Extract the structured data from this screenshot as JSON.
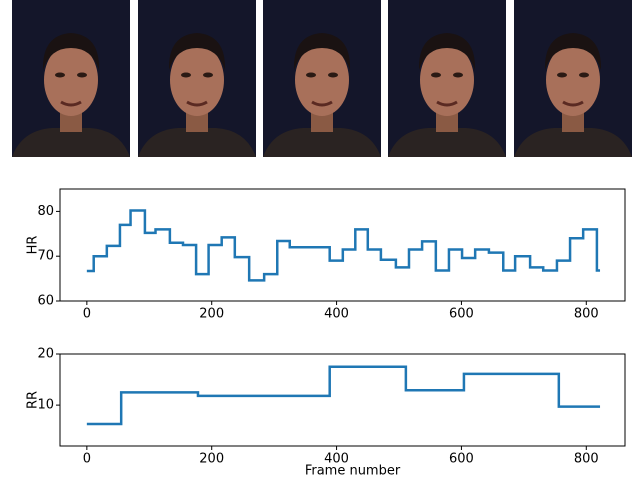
{
  "chart_data": [
    {
      "type": "line",
      "step": "post",
      "ylabel": "HR",
      "color": "#1f77b4",
      "x": [
        0,
        11,
        32,
        53,
        70,
        93,
        110,
        133,
        154,
        175,
        195,
        216,
        237,
        260,
        284,
        305,
        325,
        389,
        410,
        430,
        450,
        471,
        495,
        516,
        537,
        559,
        580,
        601,
        622,
        644,
        667,
        686,
        710,
        731,
        753,
        774,
        795,
        817,
        822
      ],
      "values": [
        66.7,
        70,
        72.3,
        77,
        80.2,
        75.2,
        76,
        73,
        72.5,
        66,
        72.5,
        74.2,
        69.8,
        64.6,
        66,
        73.4,
        72,
        69,
        71.5,
        76,
        71.5,
        69.2,
        67.5,
        71.5,
        73.3,
        66.8,
        71.5,
        69.6,
        71.5,
        70.8,
        66.8,
        70,
        67.5,
        66.8,
        69,
        74,
        76,
        66.8,
        66.8
      ],
      "xlim": [
        -43,
        862
      ],
      "xticks": [
        0,
        200,
        400,
        600,
        800
      ],
      "ylim": [
        60,
        85
      ],
      "yticks": [
        60,
        70,
        80
      ]
    },
    {
      "type": "line",
      "step": "post",
      "ylabel": "RR",
      "xlabel": "Frame number",
      "color": "#1f77b4",
      "x": [
        0,
        55,
        178,
        389,
        511,
        604,
        756,
        822
      ],
      "values": [
        6.3,
        12.5,
        11.8,
        17.5,
        12.9,
        16.1,
        9.7,
        9.7
      ],
      "xlim": [
        -43,
        862
      ],
      "xticks": [
        0,
        200,
        400,
        600,
        800
      ],
      "ylim": [
        2,
        20
      ],
      "yticks": [
        10,
        20
      ]
    }
  ]
}
